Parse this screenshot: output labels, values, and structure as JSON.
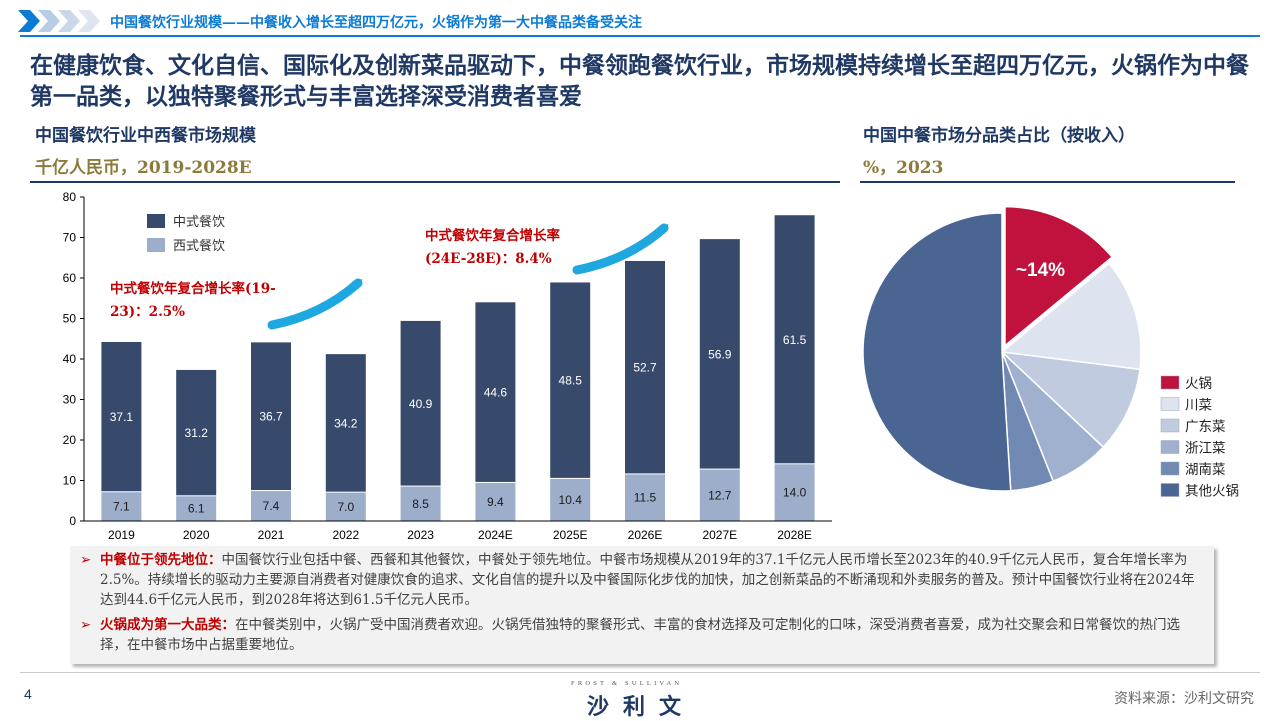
{
  "header": {
    "subtitle": "中国餐饮行业规模——中餐收入增长至超四万亿元，火锅作为第一大中餐品类备受关注",
    "headline": "在健康饮食、文化自信、国际化及创新菜品驱动下，中餐领跑餐饮行业，市场规模持续增长至超四万亿元，火锅作为中餐第一品类，以独特聚餐形式与丰富选择深受消费者喜爱"
  },
  "left_panel": {
    "title": "中国餐饮行业中西餐市场规模",
    "unit": "千亿人民币，2019-2028E"
  },
  "right_panel": {
    "title": "中国中餐市场分品类占比（按收入）",
    "unit": "%，2023"
  },
  "colors": {
    "chinese": "#374a6c",
    "western": "#9daecb",
    "hotpot": "#c0123c",
    "arrow": "#1ea8df",
    "annot": "#c00000"
  },
  "chart_data": [
    {
      "type": "bar",
      "stacked": true,
      "categories": [
        "2019",
        "2020",
        "2021",
        "2022",
        "2023",
        "2024E",
        "2025E",
        "2026E",
        "2027E",
        "2028E"
      ],
      "series": [
        {
          "name": "西式餐饮",
          "values": [
            7.1,
            6.1,
            7.4,
            7.0,
            8.5,
            9.4,
            10.4,
            11.5,
            12.7,
            14.0
          ]
        },
        {
          "name": "中式餐饮",
          "values": [
            37.1,
            31.2,
            36.7,
            34.2,
            40.9,
            44.6,
            48.5,
            52.7,
            56.9,
            61.5
          ]
        }
      ],
      "ylim": [
        0,
        80
      ],
      "yticks": [
        "0",
        "10",
        "20",
        "30",
        "40",
        "50",
        "60",
        "70",
        "80"
      ],
      "legend_position": "top-left",
      "annotations": [
        {
          "line1": "中式餐饮年复合增长率(19-",
          "line2": "23)：2.5%"
        },
        {
          "line1": "中式餐饮年复合增长率",
          "line2": "(24E-28E)：8.4%"
        }
      ]
    },
    {
      "type": "pie",
      "labels": [
        "火锅",
        "川菜",
        "广东菜",
        "浙江菜",
        "湖南菜",
        "其他火锅"
      ],
      "values": [
        14,
        13,
        10,
        7,
        5,
        51
      ],
      "label_text": "~14%",
      "colors": [
        "#c0123c",
        "#dde3ef",
        "#c0cbe0",
        "#9fb1cf",
        "#7189b3",
        "#4a6592"
      ],
      "legend_position": "right"
    }
  ],
  "notes": [
    {
      "lead": "中餐位于领先地位：",
      "text": "中国餐饮行业包括中餐、西餐和其他餐饮，中餐处于领先地位。中餐市场规模从2019年的37.1千亿元人民币增长至2023年的40.9千亿元人民币，复合年增长率为2.5%。持续增长的驱动力主要源自消费者对健康饮食的追求、文化自信的提升以及中餐国际化步伐的加快，加之创新菜品的不断涌现和外卖服务的普及。预计中国餐饮行业将在2024年达到44.6千亿元人民币，到2028年将达到61.5千亿元人民币。"
    },
    {
      "lead": "火锅成为第一大品类：",
      "text": "在中餐类别中，火锅广受中国消费者欢迎。火锅凭借独特的聚餐形式、丰富的食材选择及可定制化的口味，深受消费者喜爱，成为社交聚会和日常餐饮的热门选择，在中餐市场中占据重要地位。"
    }
  ],
  "footer": {
    "page": "4",
    "logo_en": "FROST & SULLIVAN",
    "logo_cn": "沙利文",
    "source": "资料来源：沙利文研究"
  }
}
